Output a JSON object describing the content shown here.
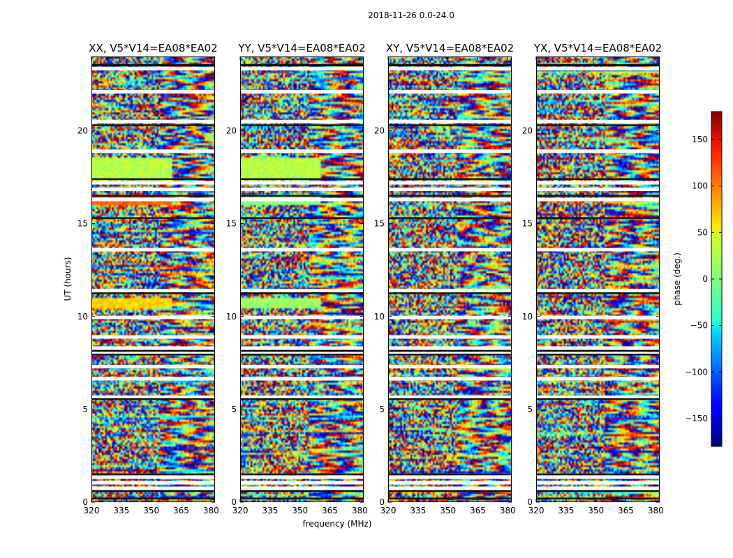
{
  "chart_data": {
    "type": "heatmap",
    "suptitle": "2018-11-26 0.0-24.0",
    "xlabel": "frequency (MHz)",
    "ylabel": "UT (hours)",
    "xlim": [
      320,
      382
    ],
    "ylim": [
      0,
      24
    ],
    "xticks": [
      "320",
      "335",
      "350",
      "365",
      "380"
    ],
    "xtick_values": [
      320,
      335,
      350,
      365,
      380
    ],
    "yticks": [
      "0",
      "5",
      "10",
      "15",
      "20"
    ],
    "ytick_values": [
      0,
      5,
      10,
      15,
      20
    ],
    "panels": [
      {
        "title": "XX, V5*V14=EA08*EA02",
        "seed": 11
      },
      {
        "title": "YY, V5*V14=EA08*EA02",
        "seed": 23
      },
      {
        "title": "XY, V5*V14=EA08*EA02",
        "seed": 37
      },
      {
        "title": "YX, V5*V14=EA08*EA02",
        "seed": 53
      }
    ],
    "colorbar": {
      "label": "phase (deg.)",
      "range": [
        -180,
        180
      ],
      "ticks": [
        "150",
        "100",
        "50",
        "0",
        "−50",
        "−100",
        "−150"
      ],
      "tick_values": [
        150,
        100,
        50,
        0,
        -50,
        -100,
        -150
      ],
      "colormap": "jet"
    },
    "blank_rows_hours": [
      0.75,
      1.05,
      1.35,
      5.65,
      6.65,
      7.3,
      8.0,
      8.3,
      8.9,
      9.95,
      11.4,
      13.6,
      16.3,
      16.85,
      17.2,
      18.9,
      20.5,
      22.1,
      23.35
    ],
    "dark_rows_hours": [
      0.2,
      0.6,
      1.5,
      5.55,
      7.95,
      8.15,
      11.25,
      15.3,
      16.5,
      17.4,
      20.3,
      23.55
    ],
    "smooth_bands": [
      {
        "start": 17.3,
        "end": 18.6,
        "phase_deg": 20,
        "panels": [
          "XX",
          "YY"
        ]
      },
      {
        "start": 15.95,
        "end": 16.6,
        "phase_deg": 100,
        "panels": [
          "XX"
        ]
      },
      {
        "start": 15.95,
        "end": 16.6,
        "phase_deg": 5,
        "panels": [
          "YY"
        ]
      },
      {
        "start": 10.5,
        "end": 11.0,
        "phase_deg": 60,
        "panels": [
          "XX"
        ]
      },
      {
        "start": 10.5,
        "end": 11.0,
        "phase_deg": 10,
        "panels": [
          "YY"
        ]
      }
    ]
  }
}
